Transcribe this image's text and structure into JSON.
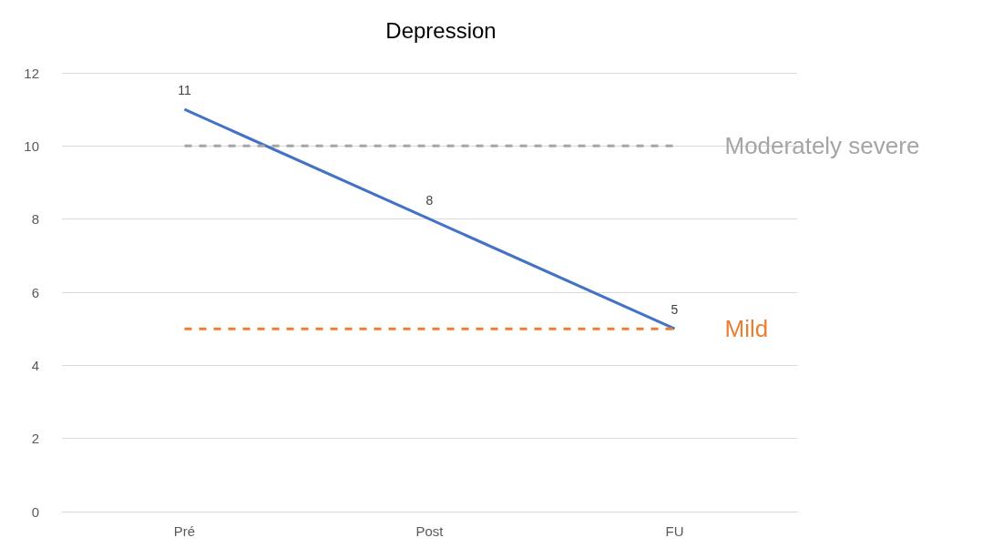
{
  "chart_data": {
    "type": "line",
    "title": "Depression",
    "categories": [
      "Pré",
      "Post",
      "FU"
    ],
    "series": [
      {
        "color": "#4472c4",
        "values": [
          11,
          8,
          5
        ],
        "value_labels": [
          "11",
          "8",
          "5"
        ],
        "line_style": "solid"
      },
      {
        "name": "Moderately severe",
        "color": "#a5a5a5",
        "values": [
          10,
          10,
          10
        ],
        "line_style": "dashed"
      },
      {
        "name": "Mild",
        "color": "#ed7d31",
        "values": [
          5,
          5,
          5
        ],
        "line_style": "dashed"
      }
    ],
    "ylim": [
      0,
      12
    ],
    "yticks": [
      0,
      2,
      4,
      6,
      8,
      10,
      12
    ],
    "grid": "y",
    "legend": false,
    "marker": "none"
  }
}
